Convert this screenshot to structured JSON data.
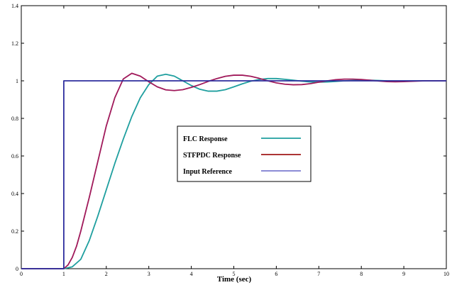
{
  "chart_data": {
    "type": "line",
    "title": "",
    "xlabel": "Time (sec)",
    "ylabel": "",
    "xlim": [
      0,
      10
    ],
    "ylim": [
      0,
      1.4
    ],
    "xticks": [
      0,
      1,
      2,
      3,
      4,
      5,
      6,
      7,
      8,
      9,
      10
    ],
    "yticks": [
      0,
      0.2,
      0.4,
      0.6,
      0.8,
      1,
      1.2,
      1.4
    ],
    "grid": false,
    "legend_position": "center",
    "series": [
      {
        "name": "FLC Response",
        "color": "#1f9f9f",
        "x": [
          0,
          1.0,
          1.2,
          1.4,
          1.6,
          1.8,
          2.0,
          2.2,
          2.4,
          2.6,
          2.8,
          3.0,
          3.2,
          3.4,
          3.6,
          3.8,
          4.0,
          4.2,
          4.4,
          4.6,
          4.8,
          5.0,
          5.2,
          5.4,
          5.6,
          5.8,
          6.0,
          6.2,
          6.4,
          6.6,
          6.8,
          7.0,
          7.2,
          7.4,
          7.6,
          7.8,
          8.0,
          8.2,
          8.4,
          8.6,
          8.8,
          9.0,
          9.5,
          10.0
        ],
        "y": [
          0,
          0,
          0.01,
          0.05,
          0.15,
          0.28,
          0.42,
          0.56,
          0.69,
          0.81,
          0.91,
          0.98,
          1.025,
          1.035,
          1.025,
          1.0,
          0.975,
          0.955,
          0.945,
          0.945,
          0.953,
          0.968,
          0.984,
          0.998,
          1.007,
          1.012,
          1.012,
          1.008,
          1.003,
          0.998,
          0.994,
          0.993,
          0.994,
          0.997,
          1.0,
          1.002,
          1.003,
          1.003,
          1.002,
          1.0,
          0.999,
          0.999,
          1.0,
          1.0
        ]
      },
      {
        "name": "STFPDC Response",
        "color": "#a0195a",
        "x": [
          0,
          1.0,
          1.1,
          1.2,
          1.3,
          1.4,
          1.5,
          1.6,
          1.8,
          2.0,
          2.2,
          2.4,
          2.6,
          2.8,
          3.0,
          3.2,
          3.4,
          3.6,
          3.8,
          4.0,
          4.2,
          4.4,
          4.6,
          4.8,
          5.0,
          5.2,
          5.4,
          5.6,
          5.8,
          6.0,
          6.2,
          6.4,
          6.6,
          6.8,
          7.0,
          7.2,
          7.4,
          7.6,
          7.8,
          8.0,
          8.2,
          8.4,
          8.6,
          8.8,
          9.0,
          9.5,
          10.0
        ],
        "y": [
          0,
          0,
          0.02,
          0.06,
          0.12,
          0.2,
          0.29,
          0.38,
          0.57,
          0.76,
          0.91,
          1.01,
          1.04,
          1.025,
          0.995,
          0.968,
          0.952,
          0.948,
          0.953,
          0.965,
          0.98,
          0.997,
          1.012,
          1.024,
          1.03,
          1.03,
          1.024,
          1.013,
          1.0,
          0.989,
          0.982,
          0.979,
          0.98,
          0.985,
          0.993,
          1.0,
          1.006,
          1.009,
          1.009,
          1.007,
          1.003,
          0.999,
          0.996,
          0.995,
          0.996,
          1.0,
          1.0
        ]
      },
      {
        "name": "Input Reference",
        "color": "#2e2e9e",
        "x": [
          0,
          1.0,
          1.0,
          10.0
        ],
        "y": [
          0,
          0,
          1.0,
          1.0
        ]
      }
    ]
  }
}
